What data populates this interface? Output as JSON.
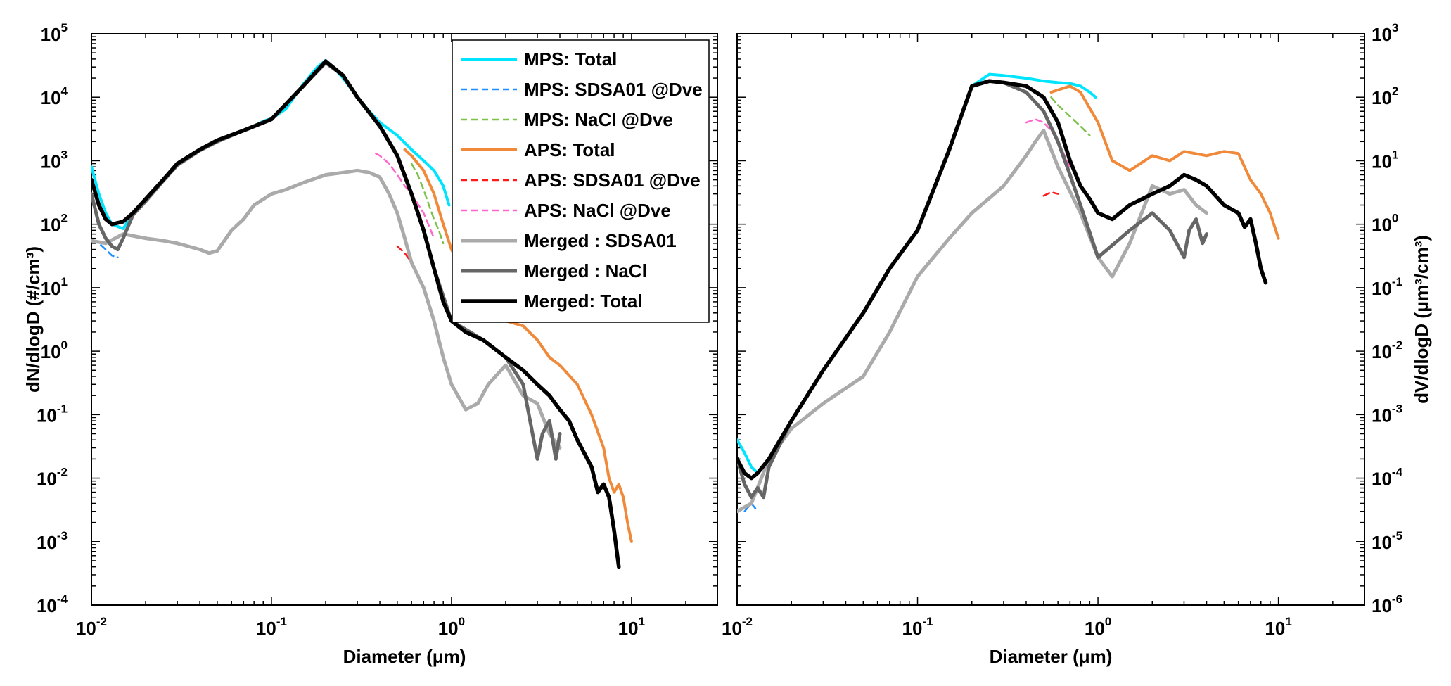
{
  "chart_data": [
    {
      "type": "line",
      "xlabel": "Diameter (μm)",
      "ylabel": "dN/dlogD (#/cm³)",
      "xscale": "log",
      "yscale": "log",
      "xlim": [
        0.01,
        30
      ],
      "ylim": [
        0.0001,
        100000
      ],
      "grid": false,
      "legend_position": "top-right",
      "x_ticks": [
        {
          "base": "10",
          "exp": "-2"
        },
        {
          "base": "10",
          "exp": "-1"
        },
        {
          "base": "10",
          "exp": "0"
        },
        {
          "base": "10",
          "exp": "1"
        }
      ],
      "y_ticks": [
        {
          "base": "10",
          "exp": "-4"
        },
        {
          "base": "10",
          "exp": "-3"
        },
        {
          "base": "10",
          "exp": "-2"
        },
        {
          "base": "10",
          "exp": "-1"
        },
        {
          "base": "10",
          "exp": "0"
        },
        {
          "base": "10",
          "exp": "1"
        },
        {
          "base": "10",
          "exp": "2"
        },
        {
          "base": "10",
          "exp": "3"
        },
        {
          "base": "10",
          "exp": "4"
        },
        {
          "base": "10",
          "exp": "5"
        }
      ],
      "series": [
        {
          "name": "MPS: Total",
          "color": "#00e5ff",
          "dash": false,
          "width": 4,
          "x": [
            0.01,
            0.011,
            0.012,
            0.013,
            0.015,
            0.017,
            0.02,
            0.025,
            0.03,
            0.04,
            0.05,
            0.06,
            0.07,
            0.08,
            0.09,
            0.1,
            0.12,
            0.15,
            0.18,
            0.2,
            0.22,
            0.25,
            0.3,
            0.35,
            0.4,
            0.5,
            0.6,
            0.7,
            0.8,
            0.9,
            0.97
          ],
          "y": [
            800,
            300,
            150,
            100,
            85,
            150,
            250,
            500,
            900,
            1500,
            2100,
            2500,
            3000,
            3500,
            4200,
            4600,
            6500,
            16000,
            30000,
            38000,
            30000,
            20000,
            10000,
            6000,
            4000,
            2500,
            1500,
            1000,
            700,
            400,
            200
          ]
        },
        {
          "name": "MPS: SDSA01 @Dve",
          "color": "#1e90ff",
          "dash": true,
          "width": 2.5,
          "x": [
            0.01,
            0.011,
            0.012,
            0.013,
            0.014
          ],
          "y": [
            55,
            50,
            40,
            32,
            30
          ]
        },
        {
          "name": "MPS: NaCl @Dve",
          "color": "#7cc24a",
          "dash": true,
          "width": 2.5,
          "x": [
            0.6,
            0.65,
            0.7,
            0.75,
            0.8,
            0.85,
            0.9
          ],
          "y": [
            900,
            600,
            350,
            200,
            120,
            80,
            50
          ]
        },
        {
          "name": "APS: Total",
          "color": "#f08a3a",
          "dash": false,
          "width": 4,
          "x": [
            0.55,
            0.6,
            0.7,
            0.8,
            0.9,
            1.0,
            1.2,
            1.5,
            2.0,
            2.5,
            3.0,
            3.5,
            4.0,
            5.0,
            6.0,
            7.0,
            7.5,
            8.0,
            8.5,
            9.0,
            9.5,
            10.0
          ],
          "y": [
            1500,
            1200,
            700,
            300,
            100,
            40,
            15,
            6,
            3,
            2.5,
            1.5,
            0.8,
            0.6,
            0.3,
            0.1,
            0.03,
            0.01,
            0.006,
            0.008,
            0.005,
            0.002,
            0.001
          ]
        },
        {
          "name": "APS: SDSA01 @Dve",
          "color": "#ff1a1a",
          "dash": true,
          "width": 2.5,
          "x": [
            0.5,
            0.55,
            0.6
          ],
          "y": [
            45,
            35,
            25
          ]
        },
        {
          "name": "APS: NaCl @Dve",
          "color": "#ff66cc",
          "dash": true,
          "width": 2.5,
          "x": [
            0.38,
            0.4,
            0.45,
            0.5,
            0.55,
            0.6,
            0.7,
            0.8
          ],
          "y": [
            1300,
            1200,
            900,
            600,
            400,
            300,
            150,
            60
          ]
        },
        {
          "name": "Merged : SDSA01",
          "color": "#aaaaaa",
          "dash": false,
          "width": 5,
          "x": [
            0.01,
            0.012,
            0.015,
            0.02,
            0.025,
            0.03,
            0.04,
            0.045,
            0.05,
            0.06,
            0.07,
            0.08,
            0.1,
            0.12,
            0.15,
            0.2,
            0.25,
            0.3,
            0.35,
            0.4,
            0.45,
            0.5,
            0.55,
            0.6,
            0.7,
            0.8,
            0.9,
            1.0,
            1.2,
            1.4,
            1.6,
            2.0,
            2.5,
            3.0,
            3.5,
            4.0
          ],
          "y": [
            55,
            50,
            70,
            60,
            55,
            50,
            40,
            35,
            38,
            80,
            120,
            200,
            300,
            350,
            450,
            600,
            650,
            700,
            650,
            550,
            300,
            150,
            60,
            25,
            10,
            3,
            0.8,
            0.3,
            0.12,
            0.15,
            0.3,
            0.6,
            0.2,
            0.15,
            0.05,
            0.03
          ]
        },
        {
          "name": "Merged : NaCl",
          "color": "#666666",
          "dash": false,
          "width": 5,
          "x": [
            0.01,
            0.011,
            0.012,
            0.013,
            0.014,
            0.015,
            0.017,
            0.02,
            0.025,
            0.03,
            0.04,
            0.05,
            0.07,
            0.1,
            0.15,
            0.2,
            0.25,
            0.3,
            0.4,
            0.5,
            0.6,
            0.7,
            0.8,
            1.0,
            1.5,
            2.0,
            2.5,
            3.0,
            3.2,
            3.5,
            3.8,
            4.0
          ],
          "y": [
            300,
            100,
            60,
            45,
            40,
            60,
            140,
            230,
            480,
            850,
            1450,
            2000,
            3000,
            4500,
            15000,
            35000,
            22000,
            10000,
            3500,
            1200,
            300,
            80,
            20,
            3,
            1.5,
            0.8,
            0.3,
            0.02,
            0.05,
            0.08,
            0.02,
            0.05
          ]
        },
        {
          "name": "Merged: Total",
          "color": "#000000",
          "dash": false,
          "width": 5.5,
          "x": [
            0.01,
            0.011,
            0.012,
            0.013,
            0.015,
            0.017,
            0.02,
            0.025,
            0.03,
            0.04,
            0.05,
            0.07,
            0.1,
            0.15,
            0.2,
            0.25,
            0.3,
            0.4,
            0.5,
            0.6,
            0.7,
            0.8,
            0.9,
            1.0,
            1.2,
            1.5,
            2.0,
            2.5,
            3.0,
            3.5,
            4.0,
            4.5,
            5.0,
            6.0,
            6.5,
            7.0,
            7.5,
            8.0,
            8.5
          ],
          "y": [
            500,
            200,
            120,
            100,
            110,
            150,
            250,
            500,
            900,
            1500,
            2100,
            3000,
            4500,
            15000,
            37000,
            22000,
            10000,
            3500,
            1200,
            300,
            80,
            20,
            6,
            3,
            2,
            1.5,
            0.8,
            0.5,
            0.3,
            0.2,
            0.12,
            0.08,
            0.04,
            0.015,
            0.006,
            0.008,
            0.005,
            0.0015,
            0.0004
          ]
        }
      ]
    },
    {
      "type": "line",
      "xlabel": "Diameter (μm)",
      "ylabel": "dV/dlogD (μm³/cm³)",
      "xscale": "log",
      "yscale": "log",
      "xlim": [
        0.01,
        30
      ],
      "ylim": [
        1e-06,
        1000
      ],
      "grid": false,
      "x_ticks": [
        {
          "base": "10",
          "exp": "-2"
        },
        {
          "base": "10",
          "exp": "-1"
        },
        {
          "base": "10",
          "exp": "0"
        },
        {
          "base": "10",
          "exp": "1"
        }
      ],
      "y_ticks": [
        {
          "base": "10",
          "exp": "-6"
        },
        {
          "base": "10",
          "exp": "-5"
        },
        {
          "base": "10",
          "exp": "-4"
        },
        {
          "base": "10",
          "exp": "-3"
        },
        {
          "base": "10",
          "exp": "-2"
        },
        {
          "base": "10",
          "exp": "-1"
        },
        {
          "base": "10",
          "exp": "0"
        },
        {
          "base": "10",
          "exp": "1"
        },
        {
          "base": "10",
          "exp": "2"
        },
        {
          "base": "10",
          "exp": "3"
        }
      ],
      "series": [
        {
          "name": "MPS: Total",
          "color": "#00e5ff",
          "dash": false,
          "width": 4,
          "x": [
            0.01,
            0.011,
            0.012,
            0.013,
            0.015,
            0.02,
            0.03,
            0.05,
            0.07,
            0.1,
            0.15,
            0.2,
            0.25,
            0.3,
            0.4,
            0.5,
            0.6,
            0.7,
            0.8,
            0.9,
            0.97
          ],
          "y": [
            0.0004,
            0.00025,
            0.00015,
            0.00012,
            0.0002,
            0.0008,
            0.005,
            0.04,
            0.2,
            0.8,
            15,
            150,
            230,
            220,
            200,
            180,
            170,
            165,
            150,
            120,
            100
          ]
        },
        {
          "name": "MPS: SDSA01 @Dve",
          "color": "#1e90ff",
          "dash": true,
          "width": 2.5,
          "x": [
            0.011,
            0.012,
            0.013
          ],
          "y": [
            3e-05,
            4e-05,
            3e-05
          ]
        },
        {
          "name": "MPS: NaCl @Dve",
          "color": "#7cc24a",
          "dash": true,
          "width": 2.5,
          "x": [
            0.55,
            0.6,
            0.7,
            0.8,
            0.9
          ],
          "y": [
            100,
            75,
            50,
            35,
            25
          ]
        },
        {
          "name": "APS: Total",
          "color": "#f08a3a",
          "dash": false,
          "width": 4,
          "x": [
            0.55,
            0.6,
            0.7,
            0.8,
            1.0,
            1.2,
            1.5,
            2.0,
            2.5,
            3.0,
            4.0,
            5.0,
            6.0,
            7.0,
            8.0,
            9.0,
            10.0
          ],
          "y": [
            120,
            130,
            150,
            120,
            40,
            10,
            7,
            12,
            10,
            14,
            12,
            14,
            13,
            5,
            3,
            1.5,
            0.6
          ]
        },
        {
          "name": "APS: SDSA01 @Dve",
          "color": "#ff1a1a",
          "dash": true,
          "width": 2.5,
          "x": [
            0.5,
            0.55,
            0.6
          ],
          "y": [
            2.8,
            3.2,
            3.0
          ]
        },
        {
          "name": "APS: NaCl @Dve",
          "color": "#ff66cc",
          "dash": true,
          "width": 2.5,
          "x": [
            0.4,
            0.45,
            0.5,
            0.55,
            0.6,
            0.7
          ],
          "y": [
            40,
            45,
            40,
            30,
            20,
            8
          ]
        },
        {
          "name": "Merged : SDSA01",
          "color": "#aaaaaa",
          "dash": false,
          "width": 5,
          "x": [
            0.01,
            0.012,
            0.015,
            0.02,
            0.03,
            0.05,
            0.07,
            0.1,
            0.15,
            0.2,
            0.3,
            0.4,
            0.45,
            0.5,
            0.6,
            0.8,
            1.0,
            1.2,
            1.5,
            2.0,
            2.5,
            3.0,
            3.5,
            4.0
          ],
          "y": [
            3e-05,
            4e-05,
            0.0002,
            0.0006,
            0.0015,
            0.004,
            0.02,
            0.15,
            0.6,
            1.5,
            4,
            12,
            20,
            30,
            8,
            1.5,
            0.3,
            0.15,
            0.5,
            4,
            3,
            3.5,
            2,
            1.5
          ]
        },
        {
          "name": "Merged : NaCl",
          "color": "#666666",
          "dash": false,
          "width": 5,
          "x": [
            0.01,
            0.011,
            0.012,
            0.013,
            0.014,
            0.015,
            0.02,
            0.03,
            0.05,
            0.07,
            0.1,
            0.15,
            0.2,
            0.25,
            0.3,
            0.4,
            0.5,
            0.6,
            0.7,
            0.8,
            1.0,
            1.5,
            2.0,
            2.5,
            3.0,
            3.2,
            3.5,
            3.8,
            4.0
          ],
          "y": [
            0.0002,
            8e-05,
            5e-05,
            7e-05,
            5e-05,
            0.00015,
            0.0008,
            0.005,
            0.04,
            0.2,
            0.8,
            15,
            150,
            180,
            170,
            120,
            60,
            20,
            6,
            2,
            0.3,
            0.8,
            1.5,
            0.8,
            0.3,
            0.8,
            1.2,
            0.5,
            0.7
          ]
        },
        {
          "name": "Merged: Total",
          "color": "#000000",
          "dash": false,
          "width": 5.5,
          "x": [
            0.01,
            0.011,
            0.012,
            0.013,
            0.015,
            0.02,
            0.03,
            0.05,
            0.07,
            0.1,
            0.15,
            0.2,
            0.25,
            0.3,
            0.4,
            0.5,
            0.6,
            0.7,
            0.8,
            0.9,
            1.0,
            1.2,
            1.5,
            2.0,
            2.5,
            3.0,
            3.5,
            4.0,
            5.0,
            6.0,
            6.5,
            7.0,
            7.5,
            8.0,
            8.5
          ],
          "y": [
            0.0002,
            0.00012,
            0.0001,
            0.00012,
            0.0002,
            0.0008,
            0.005,
            0.04,
            0.2,
            0.8,
            15,
            150,
            180,
            170,
            150,
            100,
            40,
            10,
            4,
            2.5,
            1.5,
            1.2,
            2,
            3,
            4,
            6,
            5,
            4,
            2,
            1.5,
            0.9,
            1.2,
            0.5,
            0.2,
            0.12
          ]
        }
      ]
    }
  ]
}
